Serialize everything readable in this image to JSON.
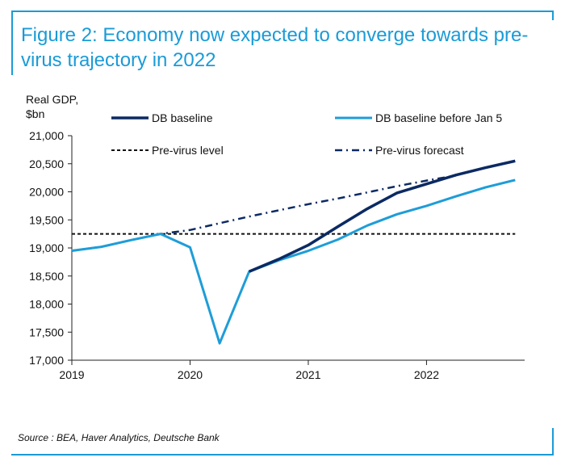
{
  "title": "Figure 2: Economy now expected to converge towards pre-virus trajectory in 2022",
  "source": "Source : BEA, Haver Analytics, Deutsche Bank",
  "chart_data": {
    "type": "line",
    "ylabel": "Real GDP, $bn",
    "ylabel_lines": [
      "Real GDP,",
      "$bn"
    ],
    "ylim": [
      17000,
      21000
    ],
    "yticks": [
      17000,
      17500,
      18000,
      18500,
      19000,
      19500,
      20000,
      20500,
      21000
    ],
    "ytick_labels": [
      "17,000",
      "17,500",
      "18,000",
      "18,500",
      "19,000",
      "19,500",
      "20,000",
      "20,500",
      "21,000"
    ],
    "xlim": [
      2019.0,
      2022.83
    ],
    "xticks": [
      2019,
      2020,
      2021,
      2022
    ],
    "xtick_labels": [
      "2019",
      "2020",
      "2021",
      "2022"
    ],
    "grid": false,
    "legend_position": "top",
    "colors": {
      "db_baseline": "#0b2a63",
      "db_baseline_before": "#1e9dd8",
      "pre_virus_level": "#111111",
      "pre_virus_forecast": "#0b2a63"
    },
    "series": [
      {
        "name": "DB baseline",
        "key": "db_baseline",
        "style": "solid",
        "x": [
          2020.5,
          2020.75,
          2021.0,
          2021.25,
          2021.5,
          2021.75,
          2022.0,
          2022.25,
          2022.5,
          2022.75
        ],
        "y": [
          18580,
          18800,
          19050,
          19380,
          19700,
          19980,
          20140,
          20300,
          20430,
          20550
        ]
      },
      {
        "name": "DB baseline before Jan 5",
        "key": "db_baseline_before",
        "style": "solid",
        "x": [
          2019.0,
          2019.25,
          2019.5,
          2019.75,
          2020.0,
          2020.25,
          2020.5,
          2020.75,
          2021.0,
          2021.25,
          2021.5,
          2021.75,
          2022.0,
          2022.25,
          2022.5,
          2022.75
        ],
        "y": [
          18950,
          19020,
          19140,
          19250,
          19010,
          17300,
          18580,
          18780,
          18950,
          19150,
          19400,
          19600,
          19750,
          19920,
          20080,
          20210
        ]
      },
      {
        "name": "Pre-virus level",
        "key": "pre_virus_level",
        "style": "dashed",
        "x": [
          2019.0,
          2022.75
        ],
        "y": [
          19250,
          19250
        ]
      },
      {
        "name": "Pre-virus forecast",
        "key": "pre_virus_forecast",
        "style": "dashdot",
        "x": [
          2019.0,
          2019.25,
          2019.5,
          2019.75,
          2020.0,
          2020.25,
          2020.5,
          2020.75,
          2021.0,
          2021.25,
          2021.5,
          2021.75,
          2022.0,
          2022.25
        ],
        "y": [
          18950,
          19020,
          19140,
          19250,
          19320,
          19440,
          19560,
          19670,
          19780,
          19880,
          19990,
          20100,
          20200,
          20290
        ]
      }
    ]
  }
}
